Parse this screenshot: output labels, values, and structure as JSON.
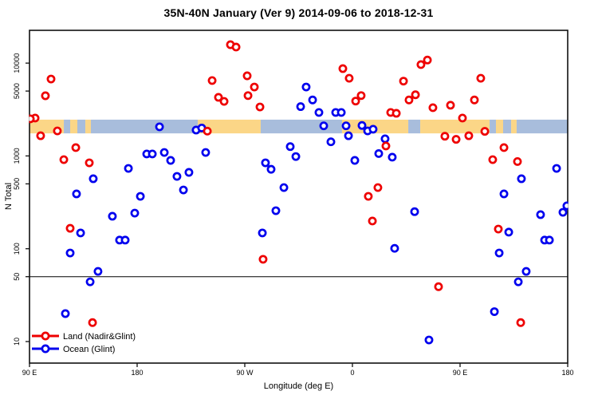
{
  "chart_data": {
    "type": "scatter",
    "title": "35N-40N January (Ver 9)   2014-09-06 to 2018-12-31",
    "xlabel": "Longitude (deg E)",
    "ylabel": "N Total",
    "x_axis": {
      "range": [
        90,
        540
      ],
      "ticks": [
        {
          "value": 90,
          "label": "90 E"
        },
        {
          "value": 180,
          "label": "180"
        },
        {
          "value": 270,
          "label": "90 W"
        },
        {
          "value": 360,
          "label": "0"
        },
        {
          "value": 450,
          "label": "90 E"
        },
        {
          "value": 540,
          "label": "180"
        }
      ]
    },
    "y_axis": {
      "scale": "log",
      "range": [
        9,
        22000
      ],
      "ticks": [
        {
          "value": 10,
          "label": "10"
        },
        {
          "value": 50,
          "label": "50"
        },
        {
          "value": 100,
          "label": "100"
        },
        {
          "value": 500,
          "label": "500"
        },
        {
          "value": 1000,
          "label": "1000"
        },
        {
          "value": 5000,
          "label": "5000"
        },
        {
          "value": 10000,
          "label": "10000"
        }
      ]
    },
    "reference_line": {
      "value": 50,
      "color": "#000000"
    },
    "land_ocean_band": {
      "n_top": 2460,
      "n_bottom": 1750,
      "land_color": "#FBD687",
      "ocean_color": "#A8BDDC",
      "segments": [
        {
          "from": 90,
          "to": 118.7,
          "surface": "land"
        },
        {
          "from": 118.7,
          "to": 124,
          "surface": "ocean"
        },
        {
          "from": 124,
          "to": 130,
          "surface": "land"
        },
        {
          "from": 130,
          "to": 136.7,
          "surface": "ocean"
        },
        {
          "from": 136.7,
          "to": 141.3,
          "surface": "land"
        },
        {
          "from": 141.3,
          "to": 230.7,
          "surface": "ocean"
        },
        {
          "from": 230.7,
          "to": 283.3,
          "surface": "land"
        },
        {
          "from": 283.3,
          "to": 351.3,
          "surface": "ocean"
        },
        {
          "from": 351.3,
          "to": 406.7,
          "surface": "land"
        },
        {
          "from": 406.7,
          "to": 416.7,
          "surface": "ocean"
        },
        {
          "from": 416.7,
          "to": 474.7,
          "surface": "land"
        },
        {
          "from": 474.7,
          "to": 480,
          "surface": "ocean"
        },
        {
          "from": 480,
          "to": 486,
          "surface": "land"
        },
        {
          "from": 486,
          "to": 492.7,
          "surface": "ocean"
        },
        {
          "from": 492.7,
          "to": 497.3,
          "surface": "land"
        },
        {
          "from": 497.3,
          "to": 540,
          "surface": "ocean"
        }
      ]
    },
    "marker": {
      "shape": "open-circle",
      "fill": "#ffffff"
    },
    "legend": {
      "position": "bottom-left"
    },
    "series": [
      {
        "name": "Land (Nadir&Glint)",
        "color": "#EE0000",
        "points": [
          [
            108,
            6740
          ],
          [
            103.3,
            4450
          ],
          [
            94.7,
            2560
          ],
          [
            90.7,
            2510
          ],
          [
            99.3,
            1650
          ],
          [
            113.3,
            1860
          ],
          [
            128.7,
            1230
          ],
          [
            118.7,
            912
          ],
          [
            140,
            843
          ],
          [
            124,
            166
          ],
          [
            142.7,
            16
          ],
          [
            258,
            15800
          ],
          [
            262.7,
            14900
          ],
          [
            242.7,
            6490
          ],
          [
            248,
            4280
          ],
          [
            252.7,
            3870
          ],
          [
            238.7,
            1850
          ],
          [
            272,
            7300
          ],
          [
            272.7,
            4470
          ],
          [
            278,
            5530
          ],
          [
            282.7,
            3370
          ],
          [
            285.3,
            77
          ],
          [
            352,
            8730
          ],
          [
            357.3,
            6870
          ],
          [
            362.7,
            3900
          ],
          [
            367.3,
            4470
          ],
          [
            381.3,
            456
          ],
          [
            373.3,
            367
          ],
          [
            376.7,
            199
          ],
          [
            388,
            1280
          ],
          [
            392,
            2940
          ],
          [
            396.7,
            2880
          ],
          [
            402.7,
            6400
          ],
          [
            407.3,
            4010
          ],
          [
            412.7,
            4560
          ],
          [
            417.3,
            9640
          ],
          [
            422.7,
            10800
          ],
          [
            427.3,
            3310
          ],
          [
            442,
            3520
          ],
          [
            437.3,
            1630
          ],
          [
            446.7,
            1510
          ],
          [
            432,
            39
          ],
          [
            452,
            2560
          ],
          [
            467.3,
            6870
          ],
          [
            462,
            4010
          ],
          [
            457.3,
            1650
          ],
          [
            470.7,
            1840
          ],
          [
            486.7,
            1230
          ],
          [
            477.3,
            912
          ],
          [
            498,
            870
          ],
          [
            482,
            163
          ],
          [
            500.7,
            16
          ]
        ]
      },
      {
        "name": "Ocean (Glint)",
        "color": "#0000EE",
        "points": [
          [
            172.7,
            734
          ],
          [
            143.3,
            568
          ],
          [
            129.3,
            390
          ],
          [
            182.7,
            367
          ],
          [
            159.3,
            224
          ],
          [
            178,
            242
          ],
          [
            165.3,
            124
          ],
          [
            170,
            124
          ],
          [
            132.7,
            148
          ],
          [
            124,
            90
          ],
          [
            147.3,
            57
          ],
          [
            140.7,
            44
          ],
          [
            120,
            20
          ],
          [
            198.7,
            2060
          ],
          [
            229.3,
            1900
          ],
          [
            234,
            2000
          ],
          [
            188,
            1050
          ],
          [
            192.7,
            1050
          ],
          [
            202.7,
            1090
          ],
          [
            208,
            895
          ],
          [
            237.3,
            1090
          ],
          [
            213.3,
            602
          ],
          [
            223.3,
            665
          ],
          [
            218.7,
            430
          ],
          [
            321.3,
            5530
          ],
          [
            326.7,
            4010
          ],
          [
            316.7,
            3400
          ],
          [
            332,
            2940
          ],
          [
            346,
            2940
          ],
          [
            350.7,
            2940
          ],
          [
            336,
            2110
          ],
          [
            342,
            1420
          ],
          [
            354.7,
            2110
          ],
          [
            356.7,
            1650
          ],
          [
            308,
            1260
          ],
          [
            312.7,
            985
          ],
          [
            287.3,
            843
          ],
          [
            292,
            718
          ],
          [
            362,
            895
          ],
          [
            302.7,
            456
          ],
          [
            296,
            257
          ],
          [
            284.7,
            148
          ],
          [
            368,
            2130
          ],
          [
            372.7,
            1860
          ],
          [
            377.3,
            1940
          ],
          [
            387.3,
            1530
          ],
          [
            393.3,
            970
          ],
          [
            382,
            1060
          ],
          [
            412,
            251
          ],
          [
            395.3,
            101
          ],
          [
            424,
            10.4
          ],
          [
            530.7,
            734
          ],
          [
            501.3,
            568
          ],
          [
            486.7,
            390
          ],
          [
            517.3,
            233
          ],
          [
            536,
            247
          ],
          [
            520.7,
            124
          ],
          [
            524.7,
            124
          ],
          [
            490.7,
            151
          ],
          [
            482.7,
            90
          ],
          [
            505.3,
            57
          ],
          [
            498.7,
            44
          ],
          [
            478.7,
            21
          ],
          [
            539.3,
            290
          ]
        ]
      }
    ]
  }
}
